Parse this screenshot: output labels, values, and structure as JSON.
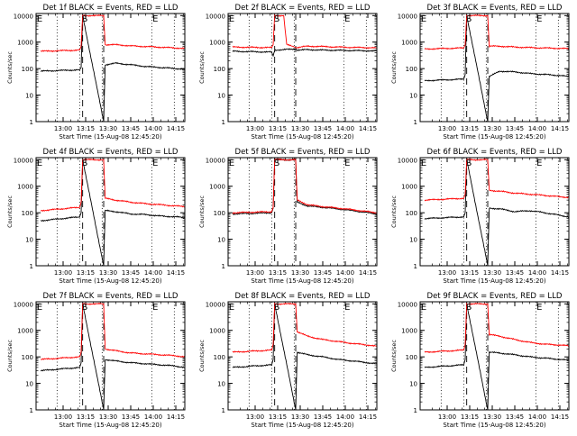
{
  "colors": {
    "events": "#000000",
    "lld": "#ff0000",
    "axis": "#000000",
    "background": "#ffffff"
  },
  "ylabel": "Counts/sec",
  "xlabel": "Start Time (15-Aug-08 12:45:20)",
  "marker_labels": [
    "E",
    "S",
    "E"
  ],
  "y_ticks": [
    "1",
    "10",
    "100",
    "1000",
    "10000"
  ],
  "chart_data": [
    {
      "type": "line",
      "title": "Det 1f BLACK = Events, RED = LLD",
      "xlim": [
        -3,
        96
      ],
      "ylim": [
        1,
        12000
      ],
      "log_y": true,
      "x_ticks": [
        "13:00",
        "13:15",
        "13:30",
        "13:45",
        "14:00",
        "14:15"
      ],
      "x_tick_positions": [
        15,
        30,
        45,
        60,
        75,
        90
      ],
      "dotted_x": [
        11,
        26,
        41,
        74,
        89
      ],
      "dashed_x": [
        28,
        42
      ],
      "series": [
        {
          "name": "Events",
          "color": "#000000",
          "x": [
            0,
            26,
            27,
            28,
            42,
            43,
            50,
            60,
            70,
            80,
            90,
            96
          ],
          "y": [
            80,
            90,
            110,
            10000,
            1,
            140,
            160,
            140,
            120,
            110,
            100,
            95
          ]
        },
        {
          "name": "LLD",
          "color": "#ff0000",
          "x": [
            0,
            26,
            27,
            28,
            42,
            43,
            50,
            60,
            70,
            80,
            90,
            96
          ],
          "y": [
            450,
            500,
            700,
            10000,
            10000,
            800,
            800,
            720,
            680,
            640,
            600,
            580
          ]
        }
      ]
    },
    {
      "type": "line",
      "title": "Det 2f BLACK = Events, RED = LLD",
      "xlim": [
        -3,
        96
      ],
      "ylim": [
        1,
        12000
      ],
      "log_y": true,
      "x_ticks": [
        "13:00",
        "13:15",
        "13:30",
        "13:45",
        "14:00",
        "14:15"
      ],
      "x_tick_positions": [
        15,
        30,
        45,
        60,
        75,
        90
      ],
      "dotted_x": [
        11,
        26,
        41,
        74,
        89
      ],
      "dashed_x": [
        28,
        42
      ],
      "series": [
        {
          "name": "Events",
          "color": "#000000",
          "x": [
            0,
            26,
            27,
            28,
            42,
            43,
            50,
            60,
            70,
            80,
            90,
            96
          ],
          "y": [
            450,
            420,
            300,
            500,
            550,
            500,
            520,
            500,
            490,
            480,
            470,
            460
          ]
        },
        {
          "name": "LLD",
          "color": "#ff0000",
          "x": [
            0,
            26,
            27,
            28,
            34,
            36,
            40,
            42,
            50,
            60,
            70,
            80,
            90,
            96
          ],
          "y": [
            650,
            620,
            800,
            10000,
            10000,
            800,
            700,
            620,
            700,
            680,
            650,
            630,
            620,
            600
          ]
        }
      ]
    },
    {
      "type": "line",
      "title": "Det 3f BLACK = Events, RED = LLD",
      "xlim": [
        -3,
        96
      ],
      "ylim": [
        1,
        12000
      ],
      "log_y": true,
      "x_ticks": [
        "13:00",
        "13:15",
        "13:30",
        "13:45",
        "14:00",
        "14:15"
      ],
      "x_tick_positions": [
        15,
        30,
        45,
        60,
        75,
        90
      ],
      "dotted_x": [
        11,
        26,
        41,
        74,
        89
      ],
      "dashed_x": [
        28,
        42
      ],
      "series": [
        {
          "name": "Events",
          "color": "#000000",
          "x": [
            0,
            26,
            27,
            28,
            42,
            43,
            50,
            60,
            70,
            80,
            90,
            96
          ],
          "y": [
            35,
            40,
            60,
            10000,
            1,
            50,
            80,
            75,
            65,
            60,
            55,
            50
          ]
        },
        {
          "name": "LLD",
          "color": "#ff0000",
          "x": [
            0,
            26,
            27,
            28,
            42,
            43,
            50,
            60,
            70,
            80,
            90,
            96
          ],
          "y": [
            550,
            600,
            800,
            10000,
            10000,
            700,
            700,
            650,
            620,
            600,
            580,
            560
          ]
        }
      ]
    },
    {
      "type": "line",
      "title": "Det 4f BLACK = Events, RED = LLD",
      "xlim": [
        -3,
        96
      ],
      "ylim": [
        1,
        12000
      ],
      "log_y": true,
      "x_ticks": [
        "13:00",
        "13:15",
        "13:30",
        "13:45",
        "14:00",
        "14:15"
      ],
      "x_tick_positions": [
        15,
        30,
        45,
        60,
        75,
        90
      ],
      "dotted_x": [
        11,
        26,
        41,
        74,
        89
      ],
      "dashed_x": [
        28,
        42
      ],
      "series": [
        {
          "name": "Events",
          "color": "#000000",
          "x": [
            0,
            26,
            27,
            28,
            42,
            43,
            50,
            60,
            70,
            80,
            90,
            96
          ],
          "y": [
            50,
            70,
            100,
            10000,
            1,
            120,
            110,
            90,
            85,
            75,
            70,
            65
          ]
        },
        {
          "name": "LLD",
          "color": "#ff0000",
          "x": [
            0,
            26,
            27,
            28,
            42,
            43,
            50,
            60,
            70,
            80,
            90,
            96
          ],
          "y": [
            120,
            160,
            250,
            10000,
            10000,
            350,
            300,
            250,
            220,
            200,
            180,
            170
          ]
        }
      ]
    },
    {
      "type": "line",
      "title": "Det 5f BLACK = Events, RED = LLD",
      "xlim": [
        -3,
        96
      ],
      "ylim": [
        1,
        12000
      ],
      "log_y": true,
      "x_ticks": [
        "13:00",
        "13:15",
        "13:30",
        "13:45",
        "14:00",
        "14:15"
      ],
      "x_tick_positions": [
        15,
        30,
        45,
        60,
        75,
        90
      ],
      "dotted_x": [
        11,
        26,
        41,
        74,
        89
      ],
      "dashed_x": [
        28,
        42
      ],
      "series": [
        {
          "name": "Events",
          "color": "#000000",
          "x": [
            0,
            26,
            27,
            28,
            42,
            43,
            50,
            60,
            70,
            80,
            90,
            96
          ],
          "y": [
            90,
            100,
            150,
            10000,
            10000,
            250,
            180,
            160,
            140,
            120,
            100,
            90
          ]
        },
        {
          "name": "LLD",
          "color": "#ff0000",
          "x": [
            0,
            26,
            27,
            28,
            42,
            43,
            50,
            60,
            70,
            80,
            90,
            96
          ],
          "y": [
            100,
            110,
            160,
            10000,
            10000,
            300,
            200,
            170,
            150,
            130,
            110,
            100
          ]
        }
      ]
    },
    {
      "type": "line",
      "title": "Det 6f BLACK = Events, RED = LLD",
      "xlim": [
        -3,
        96
      ],
      "ylim": [
        1,
        12000
      ],
      "log_y": true,
      "x_ticks": [
        "13:00",
        "13:15",
        "13:30",
        "13:45",
        "14:00",
        "14:15"
      ],
      "x_tick_positions": [
        15,
        30,
        45,
        60,
        75,
        90
      ],
      "dotted_x": [
        11,
        26,
        41,
        74,
        89
      ],
      "dashed_x": [
        28,
        42
      ],
      "series": [
        {
          "name": "Events",
          "color": "#000000",
          "x": [
            0,
            26,
            27,
            28,
            42,
            43,
            50,
            60,
            70,
            80,
            90,
            96
          ],
          "y": [
            60,
            70,
            100,
            10000,
            1,
            150,
            140,
            110,
            120,
            100,
            80,
            70
          ]
        },
        {
          "name": "LLD",
          "color": "#ff0000",
          "x": [
            0,
            26,
            27,
            28,
            42,
            43,
            50,
            60,
            70,
            80,
            90,
            96
          ],
          "y": [
            300,
            350,
            500,
            10000,
            10000,
            700,
            650,
            550,
            500,
            450,
            400,
            380
          ]
        }
      ]
    },
    {
      "type": "line",
      "title": "Det 7f BLACK = Events, RED = LLD",
      "xlim": [
        -3,
        96
      ],
      "ylim": [
        1,
        12000
      ],
      "log_y": true,
      "x_ticks": [
        "13:00",
        "13:15",
        "13:30",
        "13:45",
        "14:00",
        "14:15"
      ],
      "x_tick_positions": [
        15,
        30,
        45,
        60,
        75,
        90
      ],
      "dotted_x": [
        11,
        26,
        41,
        74,
        89
      ],
      "dashed_x": [
        28,
        42
      ],
      "series": [
        {
          "name": "Events",
          "color": "#000000",
          "x": [
            0,
            26,
            27,
            28,
            42,
            43,
            50,
            60,
            70,
            80,
            90,
            96
          ],
          "y": [
            30,
            40,
            60,
            10000,
            1,
            80,
            70,
            60,
            55,
            50,
            45,
            40
          ]
        },
        {
          "name": "LLD",
          "color": "#ff0000",
          "x": [
            0,
            26,
            27,
            28,
            42,
            43,
            50,
            60,
            70,
            80,
            90,
            96
          ],
          "y": [
            80,
            100,
            150,
            10000,
            10000,
            200,
            170,
            140,
            130,
            120,
            110,
            100
          ]
        }
      ]
    },
    {
      "type": "line",
      "title": "Det 8f BLACK = Events, RED = LLD",
      "xlim": [
        -3,
        96
      ],
      "ylim": [
        1,
        12000
      ],
      "log_y": true,
      "x_ticks": [
        "13:00",
        "13:15",
        "13:30",
        "13:45",
        "14:00",
        "14:15"
      ],
      "x_tick_positions": [
        15,
        30,
        45,
        60,
        75,
        90
      ],
      "dotted_x": [
        11,
        26,
        41,
        74,
        89
      ],
      "dashed_x": [
        28,
        42
      ],
      "series": [
        {
          "name": "Events",
          "color": "#000000",
          "x": [
            0,
            26,
            27,
            28,
            42,
            43,
            50,
            60,
            70,
            80,
            90,
            96
          ],
          "y": [
            40,
            50,
            80,
            10000,
            1,
            150,
            120,
            100,
            80,
            70,
            60,
            55
          ]
        },
        {
          "name": "LLD",
          "color": "#ff0000",
          "x": [
            0,
            26,
            27,
            28,
            42,
            43,
            50,
            60,
            70,
            80,
            90,
            96
          ],
          "y": [
            150,
            180,
            300,
            10000,
            10000,
            900,
            600,
            450,
            380,
            320,
            280,
            250
          ]
        }
      ]
    },
    {
      "type": "line",
      "title": "Det 9f BLACK = Events, RED = LLD",
      "xlim": [
        -3,
        96
      ],
      "ylim": [
        1,
        12000
      ],
      "log_y": true,
      "x_ticks": [
        "13:00",
        "13:15",
        "13:30",
        "13:45",
        "14:00",
        "14:15"
      ],
      "x_tick_positions": [
        15,
        30,
        45,
        60,
        75,
        90
      ],
      "dotted_x": [
        11,
        26,
        41,
        74,
        89
      ],
      "dashed_x": [
        28,
        42
      ],
      "series": [
        {
          "name": "Events",
          "color": "#000000",
          "x": [
            0,
            26,
            27,
            28,
            42,
            43,
            50,
            60,
            70,
            80,
            90,
            96
          ],
          "y": [
            40,
            50,
            80,
            10000,
            1,
            150,
            140,
            120,
            100,
            90,
            80,
            75
          ]
        },
        {
          "name": "LLD",
          "color": "#ff0000",
          "x": [
            0,
            26,
            27,
            28,
            42,
            43,
            50,
            60,
            70,
            80,
            90,
            96
          ],
          "y": [
            150,
            180,
            300,
            10000,
            10000,
            700,
            600,
            450,
            350,
            300,
            280,
            260
          ]
        }
      ]
    }
  ]
}
